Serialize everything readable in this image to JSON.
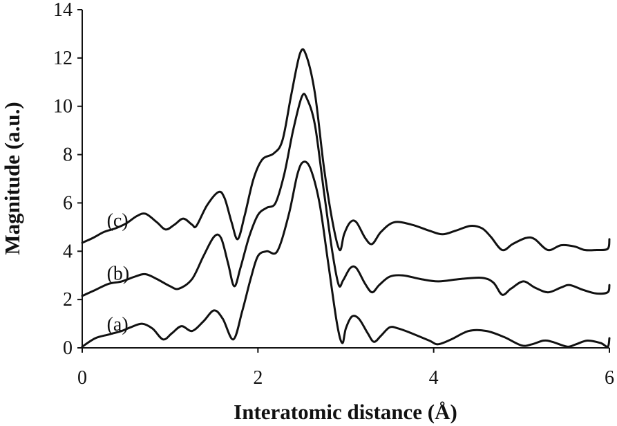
{
  "chart_data": {
    "type": "line",
    "title": "",
    "xlabel": "Interatomic distance (Å)",
    "ylabel": "Magnitude (a.u.)",
    "xlim": [
      0,
      6
    ],
    "ylim": [
      0,
      14
    ],
    "xticks": [
      "0",
      "2",
      "4",
      "6"
    ],
    "yticks": [
      "0",
      "2",
      "4",
      "6",
      "8",
      "10",
      "12",
      "14"
    ],
    "grid": false,
    "legend": "none",
    "series": [
      {
        "name": "(a)",
        "color": "#111111",
        "points": [
          [
            0.0,
            0.05
          ],
          [
            0.15,
            0.4
          ],
          [
            0.3,
            0.55
          ],
          [
            0.45,
            0.7
          ],
          [
            0.55,
            0.85
          ],
          [
            0.68,
            1.0
          ],
          [
            0.8,
            0.8
          ],
          [
            0.92,
            0.35
          ],
          [
            1.02,
            0.6
          ],
          [
            1.13,
            0.9
          ],
          [
            1.25,
            0.7
          ],
          [
            1.38,
            1.1
          ],
          [
            1.5,
            1.55
          ],
          [
            1.6,
            1.2
          ],
          [
            1.72,
            0.35
          ],
          [
            1.82,
            1.5
          ],
          [
            1.92,
            2.9
          ],
          [
            2.0,
            3.8
          ],
          [
            2.1,
            4.0
          ],
          [
            2.22,
            4.0
          ],
          [
            2.35,
            5.5
          ],
          [
            2.45,
            7.2
          ],
          [
            2.52,
            7.7
          ],
          [
            2.6,
            7.4
          ],
          [
            2.7,
            6.0
          ],
          [
            2.8,
            3.5
          ],
          [
            2.9,
            1.0
          ],
          [
            2.96,
            0.2
          ],
          [
            3.0,
            0.8
          ],
          [
            3.07,
            1.3
          ],
          [
            3.15,
            1.2
          ],
          [
            3.25,
            0.6
          ],
          [
            3.32,
            0.25
          ],
          [
            3.4,
            0.5
          ],
          [
            3.5,
            0.85
          ],
          [
            3.6,
            0.8
          ],
          [
            3.75,
            0.6
          ],
          [
            3.95,
            0.3
          ],
          [
            4.05,
            0.15
          ],
          [
            4.2,
            0.35
          ],
          [
            4.4,
            0.7
          ],
          [
            4.6,
            0.7
          ],
          [
            4.8,
            0.45
          ],
          [
            5.0,
            0.1
          ],
          [
            5.12,
            0.15
          ],
          [
            5.25,
            0.3
          ],
          [
            5.35,
            0.25
          ],
          [
            5.52,
            0.05
          ],
          [
            5.62,
            0.15
          ],
          [
            5.75,
            0.3
          ],
          [
            5.9,
            0.2
          ],
          [
            5.98,
            0.05
          ],
          [
            6.0,
            0.4
          ]
        ]
      },
      {
        "name": "(b)",
        "color": "#111111",
        "points": [
          [
            0.0,
            2.15
          ],
          [
            0.15,
            2.4
          ],
          [
            0.3,
            2.65
          ],
          [
            0.45,
            2.75
          ],
          [
            0.6,
            2.95
          ],
          [
            0.72,
            3.05
          ],
          [
            0.85,
            2.85
          ],
          [
            1.0,
            2.55
          ],
          [
            1.1,
            2.45
          ],
          [
            1.25,
            2.85
          ],
          [
            1.38,
            3.8
          ],
          [
            1.5,
            4.6
          ],
          [
            1.58,
            4.55
          ],
          [
            1.66,
            3.5
          ],
          [
            1.73,
            2.55
          ],
          [
            1.8,
            3.3
          ],
          [
            1.9,
            4.6
          ],
          [
            2.0,
            5.5
          ],
          [
            2.1,
            5.8
          ],
          [
            2.2,
            6.0
          ],
          [
            2.3,
            7.2
          ],
          [
            2.4,
            9.0
          ],
          [
            2.5,
            10.4
          ],
          [
            2.56,
            10.3
          ],
          [
            2.65,
            9.2
          ],
          [
            2.75,
            6.5
          ],
          [
            2.85,
            3.9
          ],
          [
            2.92,
            2.6
          ],
          [
            2.97,
            2.8
          ],
          [
            3.05,
            3.3
          ],
          [
            3.12,
            3.3
          ],
          [
            3.22,
            2.65
          ],
          [
            3.3,
            2.3
          ],
          [
            3.38,
            2.6
          ],
          [
            3.5,
            2.95
          ],
          [
            3.65,
            3.0
          ],
          [
            3.85,
            2.85
          ],
          [
            4.05,
            2.75
          ],
          [
            4.3,
            2.85
          ],
          [
            4.55,
            2.9
          ],
          [
            4.68,
            2.7
          ],
          [
            4.78,
            2.2
          ],
          [
            4.88,
            2.45
          ],
          [
            5.02,
            2.75
          ],
          [
            5.15,
            2.5
          ],
          [
            5.3,
            2.3
          ],
          [
            5.45,
            2.5
          ],
          [
            5.55,
            2.6
          ],
          [
            5.7,
            2.4
          ],
          [
            5.85,
            2.25
          ],
          [
            5.98,
            2.3
          ],
          [
            6.0,
            2.6
          ]
        ]
      },
      {
        "name": "(c)",
        "color": "#111111",
        "points": [
          [
            0.0,
            4.35
          ],
          [
            0.12,
            4.55
          ],
          [
            0.25,
            4.8
          ],
          [
            0.38,
            4.95
          ],
          [
            0.5,
            5.15
          ],
          [
            0.62,
            5.45
          ],
          [
            0.72,
            5.55
          ],
          [
            0.85,
            5.2
          ],
          [
            0.95,
            4.9
          ],
          [
            1.05,
            5.1
          ],
          [
            1.15,
            5.35
          ],
          [
            1.25,
            5.1
          ],
          [
            1.3,
            5.05
          ],
          [
            1.42,
            5.9
          ],
          [
            1.55,
            6.45
          ],
          [
            1.62,
            6.2
          ],
          [
            1.7,
            5.2
          ],
          [
            1.77,
            4.5
          ],
          [
            1.85,
            5.5
          ],
          [
            1.95,
            7.0
          ],
          [
            2.05,
            7.8
          ],
          [
            2.18,
            8.05
          ],
          [
            2.28,
            8.6
          ],
          [
            2.38,
            10.5
          ],
          [
            2.48,
            12.2
          ],
          [
            2.55,
            12.1
          ],
          [
            2.65,
            10.5
          ],
          [
            2.75,
            7.5
          ],
          [
            2.85,
            5.2
          ],
          [
            2.93,
            4.05
          ],
          [
            2.98,
            4.7
          ],
          [
            3.05,
            5.2
          ],
          [
            3.12,
            5.2
          ],
          [
            3.22,
            4.55
          ],
          [
            3.3,
            4.3
          ],
          [
            3.4,
            4.8
          ],
          [
            3.55,
            5.2
          ],
          [
            3.75,
            5.1
          ],
          [
            3.95,
            4.85
          ],
          [
            4.1,
            4.7
          ],
          [
            4.25,
            4.85
          ],
          [
            4.42,
            5.05
          ],
          [
            4.55,
            4.95
          ],
          [
            4.65,
            4.6
          ],
          [
            4.78,
            4.05
          ],
          [
            4.9,
            4.3
          ],
          [
            5.05,
            4.55
          ],
          [
            5.15,
            4.5
          ],
          [
            5.3,
            4.05
          ],
          [
            5.45,
            4.25
          ],
          [
            5.6,
            4.2
          ],
          [
            5.72,
            4.05
          ],
          [
            5.85,
            4.05
          ],
          [
            5.98,
            4.1
          ],
          [
            6.0,
            4.5
          ]
        ]
      }
    ]
  }
}
